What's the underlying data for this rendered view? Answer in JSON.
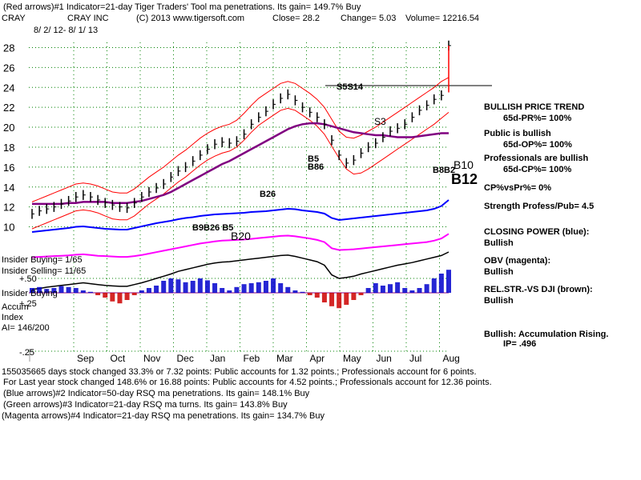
{
  "header": {
    "line1": "(Red arrows)#1 Indicator=21-day Tiger Traders' Tool ma penetrations. Its gain= 149.7% Buy",
    "symbol": "CRAY",
    "company": "CRAY INC",
    "copyright": "(C) 2013 www.tigersoft.com",
    "close": "Close=  28.2",
    "change": "Change= 5.03",
    "volume": "Volume= 12216.54",
    "date_range": "8/ 2/ 12- 8/ 1/ 13"
  },
  "right_panel": {
    "trend_title": "BULLISH PRICE TREND",
    "pr": "65d-PR%= 100%",
    "public_title": "Public is bullish",
    "op": "65d-OP%= 100%",
    "pros_title": "Professionals are bullish",
    "cp": "65d-CP%= 100%",
    "cpvspr": "CP%vsPr%=  0%",
    "strength": "Strength Profess/Pub= 4.5",
    "closing_power_title": "CLOSING POWER (blue):",
    "closing_power_value": "Bullish",
    "obv_title": "OBV (magenta):",
    "obv_value": "Bullish",
    "relstr_title": "REL.STR.-VS DJI (brown):",
    "relstr_value": "Bullish",
    "accum_title": "Bullish: Accumulation Rising.",
    "ip": "IP=  .496"
  },
  "left_labels": {
    "insider_buying": "Insider Buying= 1/65",
    "insider_selling": "Insider Selling= 11/65",
    "insider_buying2": "Insider Buying",
    "plus50": "+.50",
    "plus25": "+.25",
    "accum": "Accum",
    "index": "Index",
    "ai": "AI= 146/200",
    "minus25": "-.25"
  },
  "annotations": {
    "s5s14": "S5S14",
    "s3": "S3",
    "b5": "B5",
    "b86": "B86",
    "b26": "B26",
    "b9b26b5": "B9B26 B5",
    "b20": "B20",
    "b10": "B10",
    "b12": "B12",
    "b_cluster": "B8B2"
  },
  "footer": {
    "line1": "155035665 days stock changed  33.3% or  7.32 points:  Public accounts for  1.32 points.;  Professionals account for  6 points.",
    "line2": "For Last year stock changed  148.6% or  16.88 points:  Public accounts for  4.52 points.;  Professionals account for  12.36 points.",
    "line3": "(Blue arrows)#2 Indicator=50-day RSQ ma penetrations. Its gain= 148.1% Buy",
    "line4": "(Green arrows)#3 Indicator=21-day RSQ ma turns. Its gain= 143.8% Buy",
    "line5": "(Magenta arrows)#4 Indicator=21-day RSQ ma penetrations. Its gain= 134.7% Buy"
  },
  "colors": {
    "price": "#000000",
    "ma_long": "#800080",
    "band": "#ff0000",
    "closing_power": "#0000ff",
    "obv": "#ff00ff",
    "relstr": "#000000",
    "accum_pos": "#0000cc",
    "accum_neg": "#cc0000",
    "grid": "#008000",
    "arrow_red": "#ff0000",
    "arrow_blue": "#0000ff"
  },
  "chart_data": {
    "type": "line",
    "title": "CRAY",
    "ylim": [
      9,
      29
    ],
    "yticks": [
      10,
      12,
      14,
      16,
      18,
      20,
      22,
      24,
      26,
      28
    ],
    "x_months": [
      "Sep",
      "Oct",
      "Nov",
      "Dec",
      "Jan",
      "Feb",
      "Mar",
      "Apr",
      "May",
      "Jun",
      "Jul",
      "Aug"
    ],
    "price": [
      11.3,
      11.6,
      11.8,
      12.0,
      12.3,
      12.6,
      13.0,
      13.2,
      13.0,
      12.7,
      12.4,
      12.2,
      12.0,
      11.9,
      12.4,
      13.0,
      13.5,
      13.9,
      14.3,
      15.0,
      15.6,
      16.0,
      16.6,
      17.2,
      17.8,
      18.3,
      18.5,
      18.4,
      18.6,
      19.3,
      20.3,
      21.0,
      21.6,
      22.3,
      22.9,
      23.3,
      22.7,
      22.0,
      21.5,
      21.0,
      20.3,
      18.7,
      17.2,
      16.4,
      16.7,
      17.4,
      18.0,
      18.4,
      19.0,
      19.6,
      19.9,
      20.3,
      21.0,
      21.7,
      22.2,
      22.8,
      23.2,
      28.2
    ],
    "ma_long": [
      12.3,
      12.3,
      12.3,
      12.3,
      12.3,
      12.4,
      12.4,
      12.5,
      12.5,
      12.5,
      12.5,
      12.4,
      12.4,
      12.4,
      12.5,
      12.6,
      12.8,
      13.0,
      13.2,
      13.5,
      13.9,
      14.3,
      14.7,
      15.1,
      15.5,
      15.9,
      16.3,
      16.6,
      17.0,
      17.4,
      17.8,
      18.2,
      18.6,
      19.0,
      19.4,
      19.8,
      20.1,
      20.3,
      20.4,
      20.4,
      20.3,
      20.1,
      19.9,
      19.7,
      19.5,
      19.4,
      19.3,
      19.2,
      19.2,
      19.1,
      19.0,
      19.0,
      19.0,
      19.1,
      19.2,
      19.3,
      19.4,
      19.4
    ],
    "band_upper": [
      12.5,
      12.8,
      13.1,
      13.4,
      13.7,
      14.0,
      14.3,
      14.4,
      14.3,
      14.1,
      13.8,
      13.5,
      13.4,
      13.4,
      13.8,
      14.4,
      15.0,
      15.5,
      16.0,
      16.6,
      17.2,
      17.7,
      18.3,
      18.9,
      19.4,
      19.8,
      20.1,
      20.3,
      20.7,
      21.4,
      22.2,
      22.9,
      23.4,
      23.9,
      24.4,
      24.6,
      24.4,
      23.9,
      23.4,
      22.8,
      22.0,
      20.8,
      19.6,
      19.0,
      18.9,
      19.2,
      19.6,
      20.0,
      20.5,
      21.0,
      21.5,
      22.0,
      22.5,
      23.0,
      23.5,
      24.0,
      24.6,
      25.0
    ],
    "band_lower": [
      9.8,
      10.1,
      10.4,
      10.7,
      11.0,
      11.3,
      11.6,
      11.7,
      11.6,
      11.4,
      11.1,
      10.8,
      10.7,
      10.7,
      11.1,
      11.7,
      12.3,
      12.8,
      13.3,
      13.9,
      14.5,
      15.0,
      15.6,
      16.2,
      16.7,
      17.1,
      17.4,
      17.6,
      18.0,
      18.7,
      19.5,
      20.2,
      20.7,
      21.2,
      21.7,
      21.9,
      21.7,
      21.2,
      20.7,
      20.1,
      19.3,
      18.1,
      16.9,
      15.8,
      15.3,
      15.4,
      15.8,
      16.3,
      16.8,
      17.3,
      17.8,
      18.3,
      18.8,
      19.3,
      19.8,
      20.3,
      20.9,
      21.5
    ],
    "closing_power_level": [
      0.2,
      0.22,
      0.24,
      0.26,
      0.28,
      0.3,
      0.33,
      0.34,
      0.32,
      0.3,
      0.28,
      0.27,
      0.26,
      0.26,
      0.3,
      0.34,
      0.38,
      0.42,
      0.45,
      0.48,
      0.52,
      0.55,
      0.57,
      0.6,
      0.62,
      0.64,
      0.65,
      0.66,
      0.67,
      0.68,
      0.7,
      0.71,
      0.72,
      0.74,
      0.76,
      0.78,
      0.77,
      0.74,
      0.72,
      0.7,
      0.66,
      0.55,
      0.5,
      0.52,
      0.54,
      0.56,
      0.58,
      0.6,
      0.62,
      0.64,
      0.66,
      0.68,
      0.7,
      0.72,
      0.74,
      0.78,
      0.85,
      1.0
    ],
    "obv_level": [
      0.3,
      0.31,
      0.32,
      0.33,
      0.34,
      0.35,
      0.37,
      0.38,
      0.36,
      0.34,
      0.33,
      0.32,
      0.31,
      0.31,
      0.33,
      0.36,
      0.4,
      0.44,
      0.48,
      0.52,
      0.56,
      0.6,
      0.64,
      0.68,
      0.71,
      0.74,
      0.76,
      0.77,
      0.78,
      0.79,
      0.81,
      0.83,
      0.85,
      0.87,
      0.89,
      0.9,
      0.88,
      0.85,
      0.82,
      0.78,
      0.72,
      0.55,
      0.5,
      0.51,
      0.52,
      0.54,
      0.56,
      0.58,
      0.6,
      0.62,
      0.64,
      0.66,
      0.68,
      0.7,
      0.72,
      0.76,
      0.82,
      0.95
    ],
    "relstr_level": [
      0.15,
      0.17,
      0.2,
      0.22,
      0.24,
      0.26,
      0.28,
      0.3,
      0.28,
      0.26,
      0.24,
      0.23,
      0.22,
      0.22,
      0.26,
      0.3,
      0.35,
      0.4,
      0.45,
      0.5,
      0.56,
      0.6,
      0.64,
      0.68,
      0.72,
      0.75,
      0.77,
      0.78,
      0.8,
      0.82,
      0.84,
      0.86,
      0.88,
      0.9,
      0.92,
      0.93,
      0.9,
      0.86,
      0.82,
      0.78,
      0.7,
      0.48,
      0.4,
      0.42,
      0.45,
      0.5,
      0.54,
      0.58,
      0.62,
      0.66,
      0.7,
      0.73,
      0.76,
      0.8,
      0.84,
      0.88,
      0.92,
      1.0
    ],
    "accum_index": [
      0.1,
      0.12,
      0.08,
      0.1,
      0.14,
      0.12,
      0.1,
      0.05,
      0.02,
      -0.05,
      -0.1,
      -0.18,
      -0.22,
      -0.15,
      -0.05,
      0.05,
      0.1,
      0.15,
      0.25,
      0.3,
      0.28,
      0.22,
      0.25,
      0.3,
      0.26,
      0.2,
      0.1,
      0.05,
      0.12,
      0.18,
      0.2,
      0.22,
      0.25,
      0.3,
      0.2,
      0.12,
      0.05,
      0.02,
      -0.05,
      -0.1,
      -0.2,
      -0.28,
      -0.32,
      -0.25,
      -0.15,
      -0.05,
      0.1,
      0.2,
      0.15,
      0.18,
      0.22,
      0.1,
      0.05,
      0.1,
      0.18,
      0.3,
      0.4,
      0.48
    ]
  }
}
